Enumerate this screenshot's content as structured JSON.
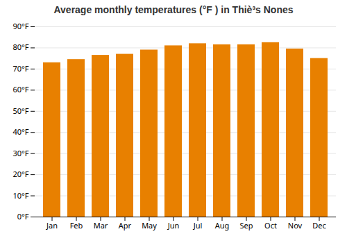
{
  "chart_data": {
    "type": "bar",
    "title": "Average monthly temperatures (°F ) in Thiè³s Nones",
    "categories": [
      "Jan",
      "Feb",
      "Mar",
      "Apr",
      "May",
      "Jun",
      "Jul",
      "Aug",
      "Sep",
      "Oct",
      "Nov",
      "Dec"
    ],
    "values": [
      73,
      74.5,
      76.5,
      77,
      79,
      81,
      82,
      81.5,
      81.5,
      82.5,
      79.5,
      75
    ],
    "color": "#E88000",
    "ylim": [
      0,
      90
    ],
    "yticks": [
      {
        "value": 0,
        "label": "0°F"
      },
      {
        "value": 10,
        "label": "10°F"
      },
      {
        "value": 20,
        "label": "20°F"
      },
      {
        "value": 30,
        "label": "30°F"
      },
      {
        "value": 40,
        "label": "40°F"
      },
      {
        "value": 50,
        "label": "50°F"
      },
      {
        "value": 60,
        "label": "60°F"
      },
      {
        "value": 70,
        "label": "70°F"
      },
      {
        "value": 80,
        "label": "80°F"
      },
      {
        "value": 90,
        "label": "90°F"
      }
    ],
    "grid": true
  }
}
